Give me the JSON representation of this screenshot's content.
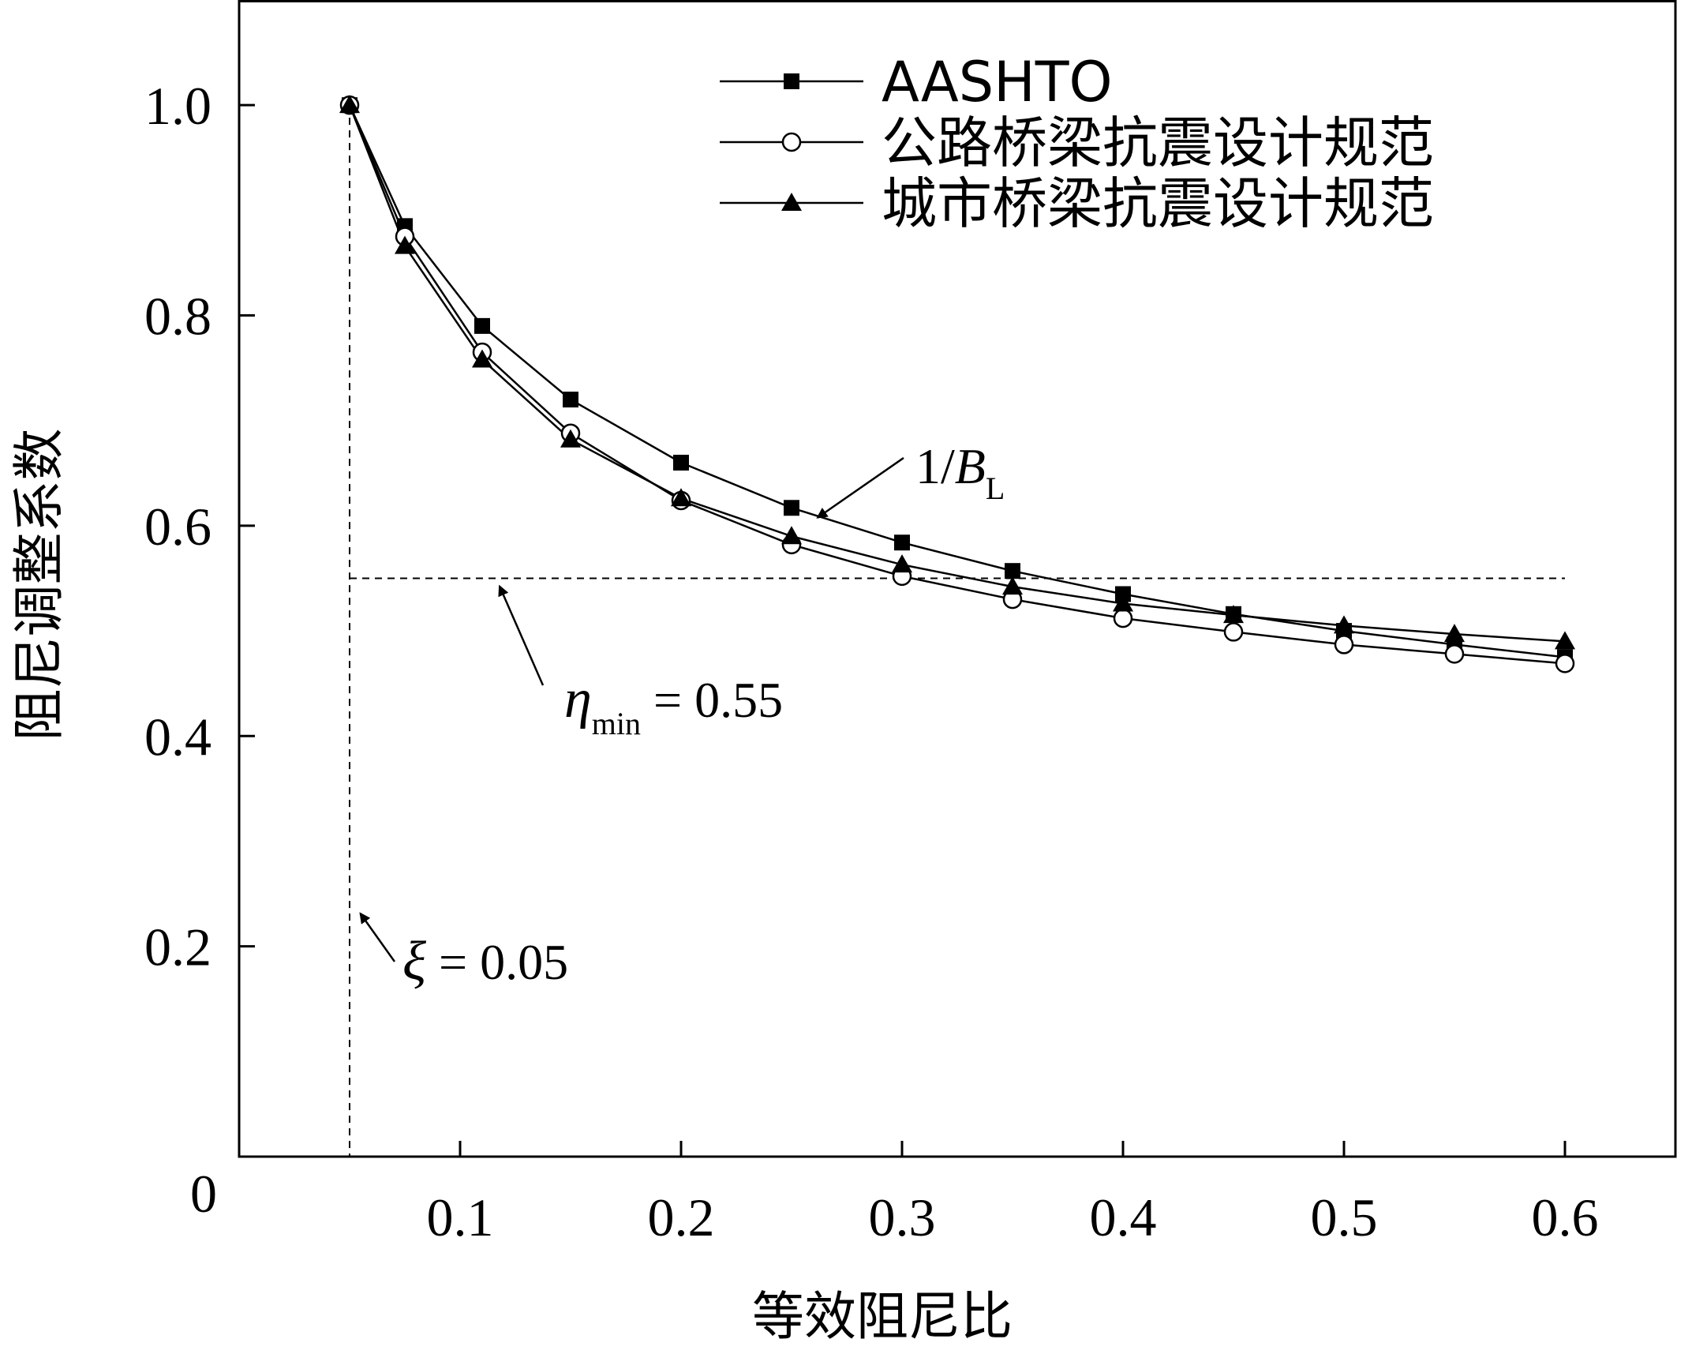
{
  "chart_data": {
    "type": "line",
    "xlabel": "等效阻尼比",
    "ylabel": "阻尼调整系数",
    "xlim": [
      0.0,
      0.65
    ],
    "ylim": [
      0.0,
      1.1
    ],
    "x_ticks": [
      0.1,
      0.2,
      0.3,
      0.4,
      0.5,
      0.6
    ],
    "x_tick_labels": [
      "0.1",
      "0.2",
      "0.3",
      "0.4",
      "0.5",
      "0.6"
    ],
    "y_ticks": [
      0.2,
      0.4,
      0.6,
      0.8,
      1.0
    ],
    "y_tick_labels": [
      "0.2",
      "0.4",
      "0.6",
      "0.8",
      "1.0"
    ],
    "origin_label": "0",
    "grid": false,
    "legend_position": "top-right",
    "series": [
      {
        "name": "AASHTO",
        "marker": "square-filled",
        "x": [
          0.05,
          0.075,
          0.11,
          0.15,
          0.2,
          0.25,
          0.3,
          0.35,
          0.4,
          0.45,
          0.5,
          0.55,
          0.6
        ],
        "y": [
          1.0,
          0.885,
          0.79,
          0.72,
          0.66,
          0.617,
          0.584,
          0.557,
          0.535,
          0.516,
          0.5,
          0.487,
          0.475
        ]
      },
      {
        "name": "公路桥梁抗震设计规范",
        "marker": "circle-open",
        "x": [
          0.05,
          0.075,
          0.11,
          0.15,
          0.2,
          0.25,
          0.3,
          0.35,
          0.4,
          0.45,
          0.5,
          0.55,
          0.6
        ],
        "y": [
          1.0,
          0.875,
          0.765,
          0.688,
          0.624,
          0.582,
          0.552,
          0.53,
          0.512,
          0.499,
          0.487,
          0.478,
          0.469
        ]
      },
      {
        "name": "城市桥梁抗震设计规范",
        "marker": "triangle-filled",
        "x": [
          0.05,
          0.075,
          0.11,
          0.15,
          0.2,
          0.25,
          0.3,
          0.35,
          0.4,
          0.45,
          0.5,
          0.55,
          0.6
        ],
        "y": [
          1.0,
          0.866,
          0.758,
          0.682,
          0.626,
          0.59,
          0.563,
          0.542,
          0.526,
          0.515,
          0.505,
          0.497,
          0.49
        ]
      }
    ],
    "reference_lines": [
      {
        "orientation": "horizontal",
        "value": 0.55,
        "style": "dashed"
      },
      {
        "orientation": "vertical",
        "value": 0.05,
        "style": "dashed"
      }
    ],
    "annotations": [
      {
        "id": "bl",
        "text": "1/B",
        "subscript": "L",
        "target": [
          0.26,
          0.61
        ]
      },
      {
        "id": "eta",
        "text": "η",
        "subscript": "min",
        "suffix": " = 0.55",
        "target": [
          0.115,
          0.55
        ]
      },
      {
        "id": "xi",
        "text": "ξ",
        "suffix": " = 0.05",
        "target": [
          0.052,
          0.24
        ]
      }
    ],
    "colors": {
      "line": "#000000",
      "background": "#ffffff"
    }
  }
}
